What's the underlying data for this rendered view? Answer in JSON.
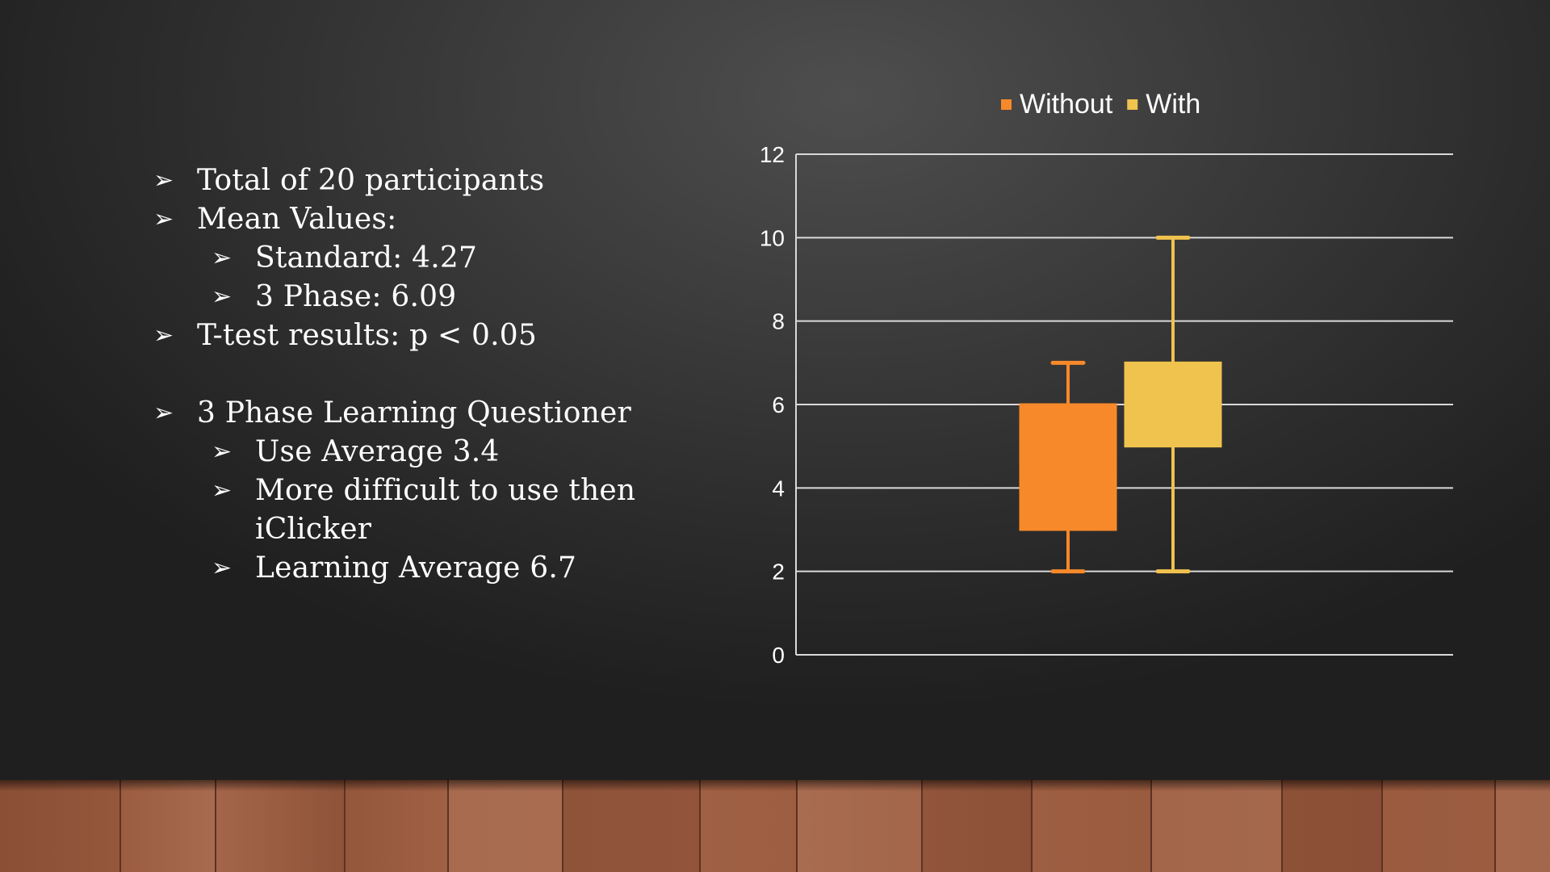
{
  "bullets": {
    "items": [
      {
        "level": 1,
        "text": "Total of 20 participants"
      },
      {
        "level": 1,
        "text": "Mean Values:"
      },
      {
        "level": 2,
        "text": "Standard: 4.27"
      },
      {
        "level": 2,
        "text": "3 Phase: 6.09"
      },
      {
        "level": 1,
        "text": "T-test results: p < 0.05"
      },
      {
        "level": 0,
        "text": ""
      },
      {
        "level": 1,
        "text": "3 Phase Learning Questioner"
      },
      {
        "level": 2,
        "text": "Use Average 3.4"
      },
      {
        "level": 2,
        "text": "More difficult to use then"
      },
      {
        "level": 3,
        "text": "iClicker"
      },
      {
        "level": 2,
        "text": "Learning Average 6.7"
      }
    ],
    "arrow_glyph": "➢"
  },
  "chart_data": {
    "type": "box",
    "title": "",
    "xlabel": "",
    "ylabel": "",
    "ylim": [
      0,
      12
    ],
    "yticks": [
      0,
      2,
      4,
      6,
      8,
      10,
      12
    ],
    "grid": true,
    "legend_position": "top",
    "series": [
      {
        "name": "Without",
        "color": "#f7892a",
        "min": 2,
        "q1": 3,
        "q3": 6,
        "max": 7
      },
      {
        "name": "With",
        "color": "#f0c24e",
        "min": 2,
        "q1": 5,
        "q3": 7,
        "max": 10
      }
    ]
  },
  "colors": {
    "text": "#ffffff",
    "gridline": "#d9d9d9",
    "axis_text": "#ffffff"
  }
}
